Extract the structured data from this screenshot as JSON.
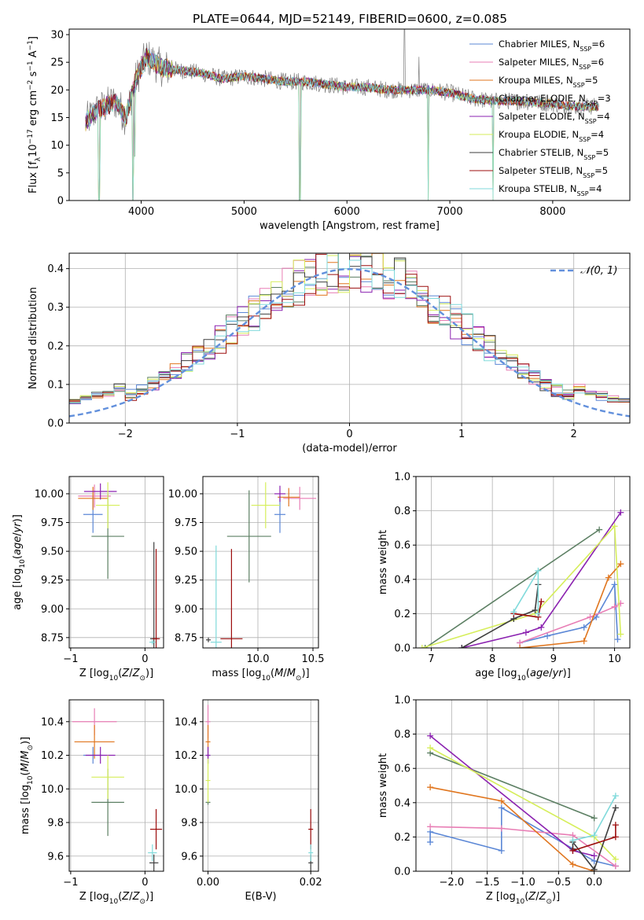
{
  "figure": {
    "title": "PLATE=0644, MJD=52149, FIBERID=0600, z=0.085"
  },
  "colors": {
    "Chabrier MILES": "#5b87d6",
    "Salpeter MILES": "#e87eb5",
    "Kroupa MILES": "#e0761f",
    "Chabrier ELODIE": "#5c7f63",
    "Salpeter ELODIE": "#8b22b0",
    "Kroupa ELODIE": "#d6ee5a",
    "Chabrier STELIB": "#3e3e3e",
    "Salpeter STELIB": "#9c0d0d",
    "Kroupa STELIB": "#80dadb",
    "spectrum_grey": "#7f7f7f",
    "gauss": "#6290dc",
    "grid": "#b0b0b0"
  },
  "chart_data": [
    {
      "id": "spectrum",
      "type": "line",
      "xlabel": "wavelength [Angstrom, rest frame]",
      "ylabel": "Flux [f_λ 10^-17 erg cm^-2 s^-1 A^-1]",
      "xlim": [
        3300,
        8750
      ],
      "ylim": [
        0,
        31
      ],
      "xticks": [
        4000,
        5000,
        6000,
        7000,
        8000
      ],
      "yticks": [
        0,
        5,
        10,
        15,
        20,
        25,
        30
      ],
      "grid": false,
      "legend_position": "top-right",
      "legend": [
        {
          "model": "Chabrier MILES",
          "n": "6"
        },
        {
          "model": "Salpeter MILES",
          "n": "6"
        },
        {
          "model": "Kroupa MILES",
          "n": "5"
        },
        {
          "model": "Chabrier ELODIE",
          "n": "3"
        },
        {
          "model": "Salpeter ELODIE",
          "n": "4"
        },
        {
          "model": "Kroupa ELODIE",
          "n": "4"
        },
        {
          "model": "Chabrier STELIB",
          "n": "5"
        },
        {
          "model": "Salpeter STELIB",
          "n": "5"
        },
        {
          "model": "Kroupa STELIB",
          "n": "4"
        }
      ],
      "continuum": {
        "x": [
          3450,
          3550,
          3650,
          3750,
          3850,
          3950,
          4050,
          4200,
          4400,
          4600,
          4800,
          5000,
          5200,
          5400,
          5600,
          5800,
          6000,
          6200,
          6400,
          6600,
          6800,
          7000,
          7200,
          7400,
          7600,
          7800,
          8000,
          8200,
          8400
        ],
        "y": [
          14,
          16,
          17,
          18,
          15,
          22,
          26,
          24,
          23.5,
          23,
          22,
          22.5,
          22,
          21.5,
          21.5,
          21,
          20.5,
          20.5,
          20,
          20,
          20,
          19.5,
          18.5,
          18,
          18,
          17.8,
          17.5,
          17,
          17
        ]
      },
      "absorption_lines": [
        {
          "x": 3590,
          "depth_to": 0
        },
        {
          "x": 3920,
          "depth_to": 0
        },
        {
          "x": 3935,
          "depth_to": 8
        },
        {
          "x": 5540,
          "depth_to": 0
        },
        {
          "x": 6790,
          "depth_to": 0
        },
        {
          "x": 7420,
          "depth_to": 0
        }
      ],
      "emission_lines": [
        {
          "x": 6560,
          "peak": 31
        },
        {
          "x": 6700,
          "peak": 26
        }
      ]
    },
    {
      "id": "residuals",
      "type": "line",
      "xlabel": "(data-model)/error",
      "ylabel": "Normed distribution",
      "xlim": [
        -2.5,
        2.5
      ],
      "ylim": [
        0,
        0.44
      ],
      "xticks": [
        -2,
        -1,
        0,
        1,
        2
      ],
      "yticks": [
        0,
        0.1,
        0.2,
        0.3,
        0.4
      ],
      "grid": true,
      "legend_position": "top-right",
      "gauss_label": "𝒩(0, 1)",
      "gauss": {
        "mean": 0,
        "sigma": 1
      }
    },
    {
      "id": "age_vs_Z",
      "type": "scatter",
      "xlabel": "Z [log10(Z/Z⊙)]",
      "ylabel": "age  [log10(age/yr)]",
      "xlim": [
        -1.02,
        0.25
      ],
      "ylim": [
        8.66,
        10.15
      ],
      "xticks": [
        -1,
        0
      ],
      "yticks": [
        8.75,
        9.0,
        9.25,
        9.5,
        9.75,
        10.0
      ],
      "grid": true,
      "points": [
        {
          "series": "Chabrier MILES",
          "x": -0.7,
          "xerr": 0.13,
          "y": 9.82,
          "yerr": 0.16
        },
        {
          "series": "Salpeter MILES",
          "x": -0.68,
          "xerr": 0.22,
          "y": 9.98,
          "yerr": 0.1
        },
        {
          "series": "Kroupa MILES",
          "x": -0.7,
          "xerr": 0.2,
          "y": 9.96,
          "yerr": 0.1
        },
        {
          "series": "Chabrier ELODIE",
          "x": -0.5,
          "xerr": 0.22,
          "y": 9.63,
          "yerr": 0.37
        },
        {
          "series": "Salpeter ELODIE",
          "x": -0.6,
          "xerr": 0.22,
          "y": 10.02,
          "yerr": 0.07
        },
        {
          "series": "Kroupa ELODIE",
          "x": -0.5,
          "xerr": 0.16,
          "y": 9.9,
          "yerr": 0.2
        },
        {
          "series": "Chabrier STELIB",
          "x": 0.12,
          "xerr": 0.05,
          "y": 8.74,
          "yerr": 0.84
        },
        {
          "series": "Salpeter STELIB",
          "x": 0.15,
          "xerr": 0.05,
          "y": 8.74,
          "yerr": 0.78
        },
        {
          "series": "Kroupa STELIB",
          "x": 0.1,
          "xerr": 0.04,
          "y": 8.71,
          "yerr": 0.0
        }
      ]
    },
    {
      "id": "age_vs_mass",
      "type": "scatter",
      "xlabel": "mass [log10(M/M⊙)]",
      "ylabel": "",
      "xlim": [
        9.5,
        10.55
      ],
      "ylim": [
        8.66,
        10.15
      ],
      "xticks": [
        10.0,
        10.5
      ],
      "yticks": [
        8.75,
        9.0,
        9.25,
        9.5,
        9.75,
        10.0
      ],
      "grid": true,
      "points": [
        {
          "series": "Chabrier MILES",
          "x": 10.2,
          "xerr": 0.05,
          "y": 9.82,
          "yerr": 0.16
        },
        {
          "series": "Salpeter MILES",
          "x": 10.38,
          "xerr": 0.15,
          "y": 9.96,
          "yerr": 0.1
        },
        {
          "series": "Kroupa MILES",
          "x": 10.28,
          "xerr": 0.1,
          "y": 9.97,
          "yerr": 0.08
        },
        {
          "series": "Chabrier ELODIE",
          "x": 9.92,
          "xerr": 0.2,
          "y": 9.63,
          "yerr": 0.4
        },
        {
          "series": "Salpeter ELODIE",
          "x": 10.2,
          "xerr": 0.05,
          "y": 10.0,
          "yerr": 0.07
        },
        {
          "series": "Kroupa ELODIE",
          "x": 10.07,
          "xerr": 0.13,
          "y": 9.9,
          "yerr": 0.2
        },
        {
          "series": "Chabrier STELIB",
          "x": 9.55,
          "xerr": 0.0,
          "y": 8.73,
          "yerr": 0.0
        },
        {
          "series": "Salpeter STELIB",
          "x": 9.76,
          "xerr": 0.1,
          "y": 8.74,
          "yerr": 0.78
        },
        {
          "series": "Kroupa STELIB",
          "x": 9.62,
          "xerr": 0.05,
          "y": 8.71,
          "yerr": 0.84
        }
      ]
    },
    {
      "id": "mass_weight_vs_age",
      "type": "line",
      "xlabel": "age  [log10(age/yr)]",
      "ylabel": "mass weight",
      "xlim": [
        6.75,
        10.25
      ],
      "ylim": [
        0,
        1.0
      ],
      "xticks": [
        7,
        8,
        9,
        10
      ],
      "yticks": [
        0.0,
        0.2,
        0.4,
        0.6,
        0.8,
        1.0
      ],
      "grid": true,
      "series": [
        {
          "name": "Chabrier MILES",
          "x": [
            8.45,
            8.9,
            9.5,
            9.7,
            10.0,
            10.05
          ],
          "y": [
            0.03,
            0.07,
            0.12,
            0.18,
            0.37,
            0.05
          ]
        },
        {
          "name": "Salpeter MILES",
          "x": [
            8.45,
            9.6,
            10.0,
            10.1
          ],
          "y": [
            0.03,
            0.18,
            0.24,
            0.26
          ]
        },
        {
          "name": "Kroupa MILES",
          "x": [
            8.45,
            9.5,
            9.9,
            10.1
          ],
          "y": [
            0.0,
            0.04,
            0.41,
            0.49
          ]
        },
        {
          "name": "Chabrier ELODIE",
          "x": [
            6.9,
            9.75
          ],
          "y": [
            0.0,
            0.69
          ]
        },
        {
          "name": "Salpeter ELODIE",
          "x": [
            7.5,
            8.55,
            8.8,
            10.1
          ],
          "y": [
            0.0,
            0.09,
            0.12,
            0.79
          ]
        },
        {
          "name": "Kroupa ELODIE",
          "x": [
            6.85,
            8.7,
            10.0,
            10.1
          ],
          "y": [
            0.0,
            0.2,
            0.71,
            0.08
          ]
        },
        {
          "name": "Chabrier STELIB",
          "x": [
            7.5,
            8.35,
            8.7,
            8.75
          ],
          "y": [
            0.0,
            0.17,
            0.22,
            0.37
          ]
        },
        {
          "name": "Salpeter STELIB",
          "x": [
            8.35,
            8.75,
            8.8
          ],
          "y": [
            0.2,
            0.18,
            0.27
          ]
        },
        {
          "name": "Kroupa STELIB",
          "x": [
            8.35,
            8.75,
            8.75
          ],
          "y": [
            0.21,
            0.45,
            0.2
          ]
        }
      ]
    },
    {
      "id": "mass_vs_Z",
      "type": "scatter",
      "xlabel": "Z [log10(Z/Z⊙)]",
      "ylabel": "mass [log10(M/M⊙)]",
      "xlim": [
        -1.02,
        0.25
      ],
      "ylim": [
        9.51,
        10.53
      ],
      "xticks": [
        -1,
        0
      ],
      "yticks": [
        9.6,
        9.8,
        10.0,
        10.2,
        10.4
      ],
      "grid": true,
      "points": [
        {
          "series": "Chabrier MILES",
          "x": -0.7,
          "xerr": 0.13,
          "y": 10.2,
          "yerr": 0.05
        },
        {
          "series": "Salpeter MILES",
          "x": -0.68,
          "xerr": 0.3,
          "y": 10.4,
          "yerr": 0.08
        },
        {
          "series": "Kroupa MILES",
          "x": -0.68,
          "xerr": 0.27,
          "y": 10.28,
          "yerr": 0.1
        },
        {
          "series": "Chabrier ELODIE",
          "x": -0.5,
          "xerr": 0.22,
          "y": 9.92,
          "yerr": 0.2
        },
        {
          "series": "Salpeter ELODIE",
          "x": -0.6,
          "xerr": 0.2,
          "y": 10.2,
          "yerr": 0.05
        },
        {
          "series": "Kroupa ELODIE",
          "x": -0.5,
          "xerr": 0.22,
          "y": 10.07,
          "yerr": 0.13
        },
        {
          "series": "Chabrier STELIB",
          "x": 0.12,
          "xerr": 0.06,
          "y": 9.56,
          "yerr": 0.05
        },
        {
          "series": "Salpeter STELIB",
          "x": 0.15,
          "xerr": 0.08,
          "y": 9.76,
          "yerr": 0.12
        },
        {
          "series": "Kroupa STELIB",
          "x": 0.1,
          "xerr": 0.06,
          "y": 9.62,
          "yerr": 0.05
        }
      ]
    },
    {
      "id": "mass_vs_ebv",
      "type": "scatter",
      "xlabel": "E(B-V)",
      "ylabel": "",
      "xlim": [
        -0.001,
        0.0215
      ],
      "ylim": [
        9.51,
        10.53
      ],
      "xticks": [
        0.0,
        0.02
      ],
      "yticks": [
        9.6,
        9.8,
        10.0,
        10.2,
        10.4
      ],
      "grid": true,
      "points": [
        {
          "series": "Chabrier MILES",
          "x": 0.0,
          "xerr": 0,
          "y": 10.2,
          "yerr": 0.05
        },
        {
          "series": "Salpeter MILES",
          "x": 0.0,
          "xerr": 0,
          "y": 10.4,
          "yerr": 0.1
        },
        {
          "series": "Kroupa MILES",
          "x": 0.0,
          "xerr": 0,
          "y": 10.28,
          "yerr": 0.1
        },
        {
          "series": "Chabrier ELODIE",
          "x": 0.0,
          "xerr": 0,
          "y": 9.92,
          "yerr": 0.0
        },
        {
          "series": "Salpeter ELODIE",
          "x": 0.0,
          "xerr": 0,
          "y": 10.2,
          "yerr": 0.05
        },
        {
          "series": "Kroupa ELODIE",
          "x": 0.0,
          "xerr": 0,
          "y": 10.05,
          "yerr": 0.13
        },
        {
          "series": "Chabrier STELIB",
          "x": 0.02,
          "xerr": 0,
          "y": 9.56,
          "yerr": 0.05
        },
        {
          "series": "Salpeter STELIB",
          "x": 0.02,
          "xerr": 0,
          "y": 9.76,
          "yerr": 0.12
        },
        {
          "series": "Kroupa STELIB",
          "x": 0.02,
          "xerr": 0,
          "y": 9.62,
          "yerr": 0.05
        }
      ]
    },
    {
      "id": "mass_weight_vs_Z",
      "type": "line",
      "xlabel": "Z [log10(Z/Z⊙)]",
      "ylabel": "mass weight",
      "xlim": [
        -2.5,
        0.5
      ],
      "ylim": [
        0,
        1.0
      ],
      "xticks": [
        -2.0,
        -1.5,
        -1.0,
        -0.5,
        0.0
      ],
      "yticks": [
        0.0,
        0.2,
        0.4,
        0.6,
        0.8,
        1.0
      ],
      "grid": true,
      "series": [
        {
          "name": "Chabrier MILES",
          "x": [
            -2.3,
            -2.3,
            -1.3,
            -1.3,
            0.0,
            0.3
          ],
          "y": [
            0.17,
            0.23,
            0.12,
            0.37,
            0.06,
            0.03
          ]
        },
        {
          "name": "Salpeter MILES",
          "x": [
            -2.3,
            -1.3,
            -0.3,
            0.3
          ],
          "y": [
            0.26,
            0.25,
            0.21,
            0.03
          ]
        },
        {
          "name": "Kroupa MILES",
          "x": [
            -2.3,
            -1.3,
            -0.3,
            0.0
          ],
          "y": [
            0.49,
            0.41,
            0.04,
            0.0
          ]
        },
        {
          "name": "Chabrier ELODIE",
          "x": [
            -2.3,
            0.0
          ],
          "y": [
            0.69,
            0.31
          ]
        },
        {
          "name": "Salpeter ELODIE",
          "x": [
            -2.3,
            -0.3,
            0.0
          ],
          "y": [
            0.79,
            0.12,
            0.09
          ]
        },
        {
          "name": "Kroupa ELODIE",
          "x": [
            -2.3,
            0.0,
            0.3
          ],
          "y": [
            0.72,
            0.2,
            0.07
          ]
        },
        {
          "name": "Chabrier STELIB",
          "x": [
            -0.3,
            -0.3,
            0.0,
            0.3
          ],
          "y": [
            0.13,
            0.17,
            0.01,
            0.37
          ]
        },
        {
          "name": "Salpeter STELIB",
          "x": [
            -0.3,
            0.3,
            0.3
          ],
          "y": [
            0.12,
            0.2,
            0.27
          ]
        },
        {
          "name": "Kroupa STELIB",
          "x": [
            -0.3,
            0.0,
            0.3
          ],
          "y": [
            0.18,
            0.21,
            0.44
          ]
        }
      ]
    }
  ]
}
